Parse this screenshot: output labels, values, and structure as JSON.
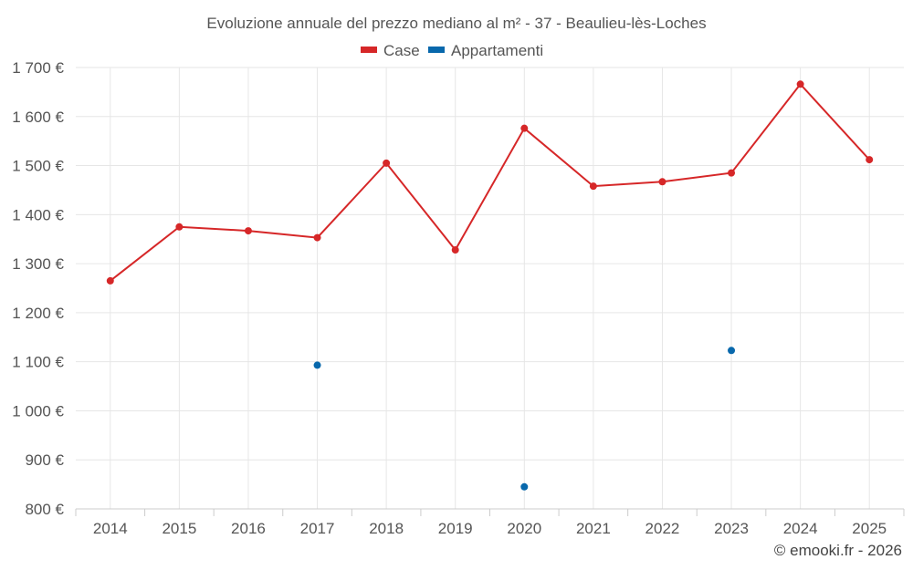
{
  "chart_data": {
    "type": "line",
    "title": "Evoluzione annuale del prezzo mediano al m² - 37 - Beaulieu-lès-Loches",
    "categories": [
      "2014",
      "2015",
      "2016",
      "2017",
      "2018",
      "2019",
      "2020",
      "2021",
      "2022",
      "2023",
      "2024",
      "2025"
    ],
    "ylim": [
      800,
      1700
    ],
    "yticks": [
      800,
      900,
      1000,
      1100,
      1200,
      1300,
      1400,
      1500,
      1600,
      1700
    ],
    "ytick_labels": [
      "800 €",
      "900 €",
      "1 000 €",
      "1 100 €",
      "1 200 €",
      "1 300 €",
      "1 400 €",
      "1 500 €",
      "1 600 €",
      "1 700 €"
    ],
    "series": [
      {
        "name": "Case",
        "color": "#d62728",
        "values": [
          1265,
          1375,
          1367,
          1353,
          1505,
          1328,
          1576,
          1458,
          1467,
          1485,
          1666,
          1512
        ]
      },
      {
        "name": "Appartamenti",
        "color": "#0868ac",
        "values": [
          null,
          null,
          null,
          1093,
          null,
          null,
          845,
          null,
          null,
          1123,
          null,
          null
        ]
      }
    ],
    "credit": "© emooki.fr - 2026"
  }
}
